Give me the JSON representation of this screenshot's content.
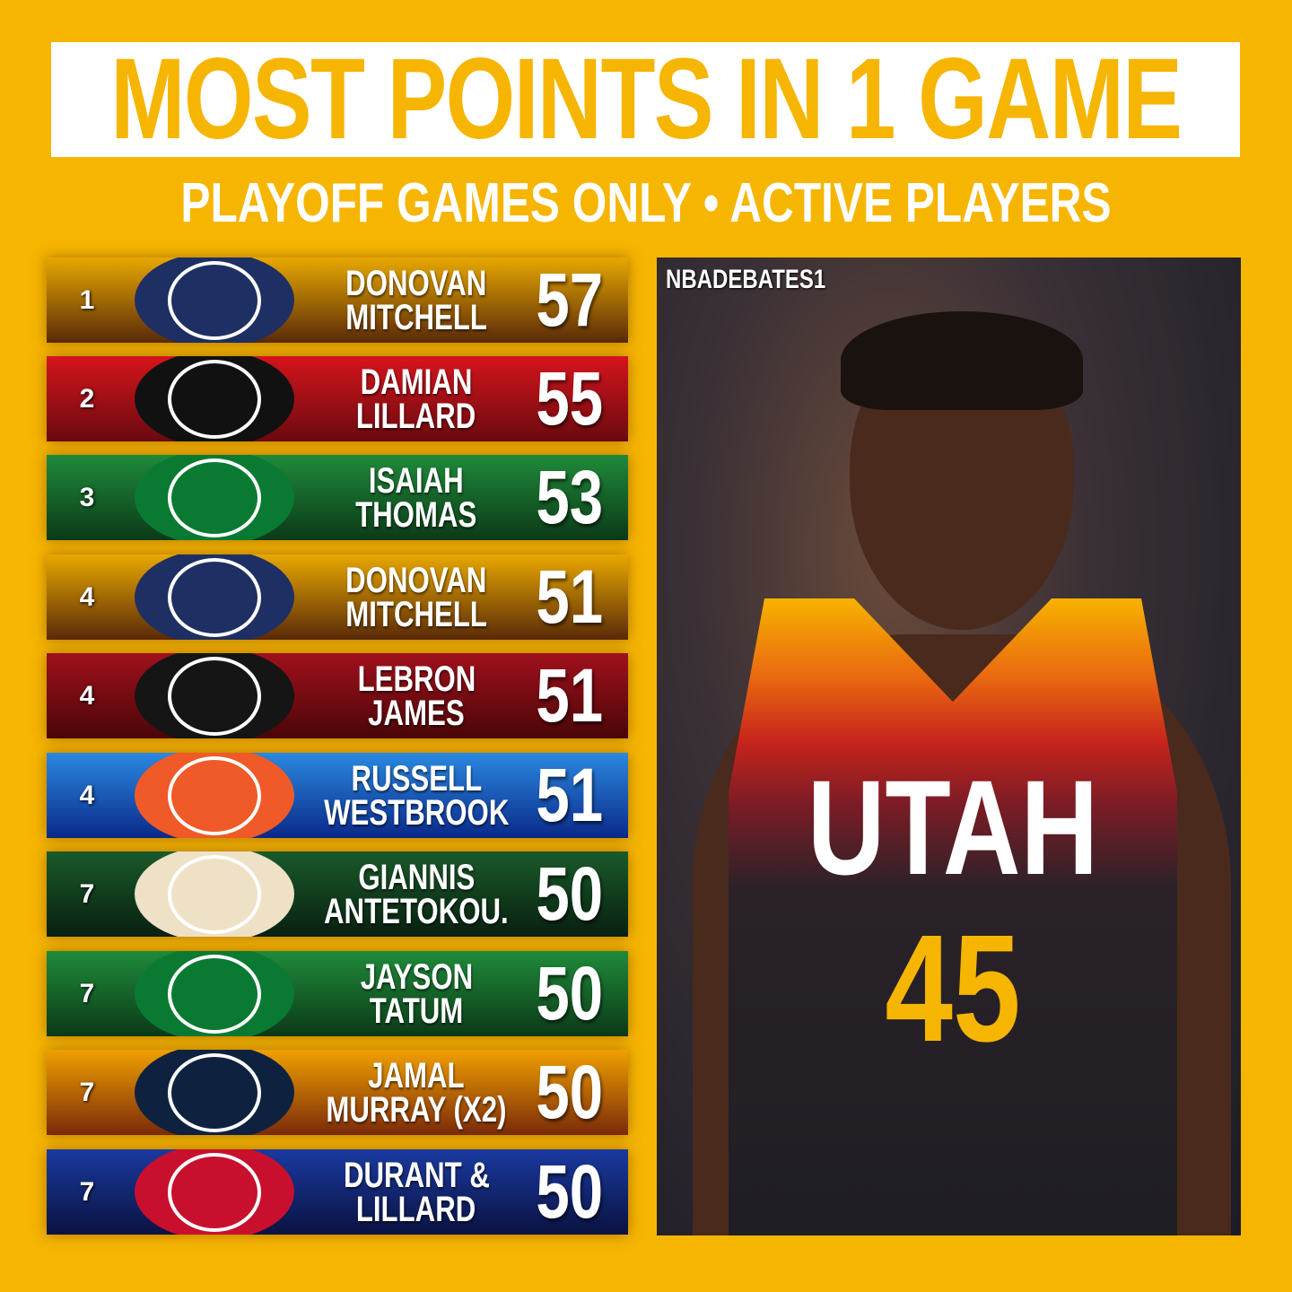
{
  "title": "MOST POINTS IN 1 GAME",
  "subtitle": "PLAYOFF GAMES ONLY • ACTIVE PLAYERS",
  "watermark": "NBADEBATES1",
  "photo": {
    "jersey_text": "UTAH",
    "jersey_number": "45"
  },
  "rows": [
    {
      "rank": "1",
      "first": "DONOVAN",
      "last": "MITCHELL",
      "points": "57",
      "team_logo": "utah-jazz-logo",
      "bg": [
        "#e8a800",
        "#5a2a08"
      ],
      "logo_color": "#1e2f63"
    },
    {
      "rank": "2",
      "first": "DAMIAN",
      "last": "LILLARD",
      "points": "55",
      "team_logo": "portland-trail-blazers-logo",
      "bg": [
        "#d6141c",
        "#6a0a10"
      ],
      "logo_color": "#111111"
    },
    {
      "rank": "3",
      "first": "ISAIAH",
      "last": "THOMAS",
      "points": "53",
      "team_logo": "boston-celtics-logo",
      "bg": [
        "#1f8a3a",
        "#0c3a18"
      ],
      "logo_color": "#0a7a33"
    },
    {
      "rank": "4",
      "first": "DONOVAN",
      "last": "MITCHELL",
      "points": "51",
      "team_logo": "utah-jazz-logo",
      "bg": [
        "#e8a800",
        "#5a2a08"
      ],
      "logo_color": "#1e2f63"
    },
    {
      "rank": "4",
      "first": "LEBRON",
      "last": "JAMES",
      "points": "51",
      "team_logo": "cleveland-cavaliers-logo",
      "bg": [
        "#a0101c",
        "#4a0608"
      ],
      "logo_color": "#151515"
    },
    {
      "rank": "4",
      "first": "RUSSELL",
      "last": "WESTBROOK",
      "points": "51",
      "team_logo": "okc-thunder-logo",
      "bg": [
        "#2a88e0",
        "#0a2a8a"
      ],
      "logo_color": "#f05a28"
    },
    {
      "rank": "7",
      "first": "GIANNIS",
      "last": "ANTETOKOU.",
      "points": "50",
      "team_logo": "milwaukee-bucks-logo",
      "bg": [
        "#1a5a2a",
        "#082010"
      ],
      "logo_color": "#eee1c6"
    },
    {
      "rank": "7",
      "first": "JAYSON",
      "last": "TATUM",
      "points": "50",
      "team_logo": "boston-celtics-logo",
      "bg": [
        "#1f8a3a",
        "#0c3a18"
      ],
      "logo_color": "#0a7a33"
    },
    {
      "rank": "7",
      "first": "JAMAL",
      "last": "MURRAY (X2)",
      "points": "50",
      "team_logo": "denver-nuggets-logo",
      "bg": [
        "#f0a000",
        "#7a2a08"
      ],
      "logo_color": "#0e2240"
    },
    {
      "rank": "7",
      "first": "DURANT &",
      "last": "LILLARD",
      "points": "50",
      "team_logo": "nba-logo",
      "bg": [
        "#1a3aa0",
        "#0a1240"
      ],
      "logo_color": "#c8102e"
    }
  ],
  "colors": {
    "background": "#f6b500",
    "title_text": "#f6b500"
  }
}
